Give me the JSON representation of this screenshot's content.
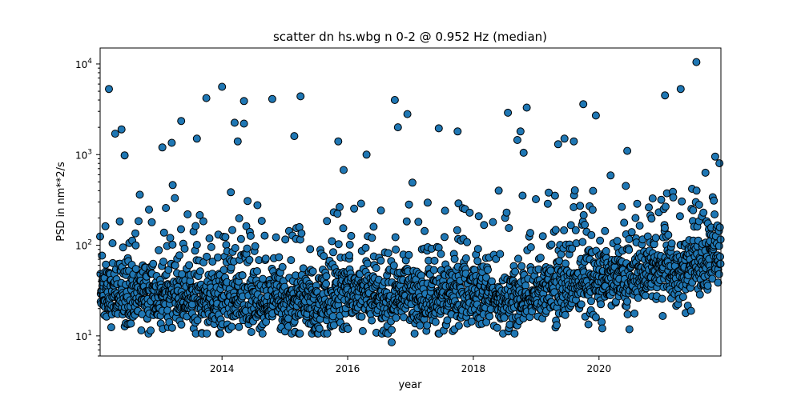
{
  "chart_data": {
    "type": "scatter",
    "title": "scatter dn hs.wbg n 0-2 @ 0.952 Hz (median)",
    "xlabel": "year",
    "ylabel": "PSD in nm**2/s",
    "xlim": [
      2012.06,
      2021.94
    ],
    "ylim": [
      6,
      15000
    ],
    "yscale": "log",
    "grid": false,
    "x_ticks": [
      2014,
      2016,
      2018,
      2020
    ],
    "y_ticks": [
      {
        "value": 10,
        "base": "10",
        "exp": "1"
      },
      {
        "value": 100,
        "base": "10",
        "exp": "2"
      },
      {
        "value": 1000,
        "base": "10",
        "exp": "3"
      },
      {
        "value": 10000,
        "base": "10",
        "exp": "4"
      }
    ],
    "marker_color": "#1f77b4",
    "marker_edge": "#000000",
    "outliers": [
      {
        "x": 2012.2,
        "y": 5300
      },
      {
        "x": 2012.3,
        "y": 1700
      },
      {
        "x": 2012.4,
        "y": 1900
      },
      {
        "x": 2012.45,
        "y": 980
      },
      {
        "x": 2013.05,
        "y": 1200
      },
      {
        "x": 2013.2,
        "y": 1350
      },
      {
        "x": 2013.35,
        "y": 2350
      },
      {
        "x": 2013.75,
        "y": 4200
      },
      {
        "x": 2013.6,
        "y": 1500
      },
      {
        "x": 2014.0,
        "y": 5600
      },
      {
        "x": 2014.2,
        "y": 2250
      },
      {
        "x": 2014.25,
        "y": 1400
      },
      {
        "x": 2014.35,
        "y": 3900
      },
      {
        "x": 2014.35,
        "y": 2200
      },
      {
        "x": 2014.8,
        "y": 4100
      },
      {
        "x": 2015.25,
        "y": 4400
      },
      {
        "x": 2015.15,
        "y": 1600
      },
      {
        "x": 2015.85,
        "y": 1400
      },
      {
        "x": 2016.3,
        "y": 1000
      },
      {
        "x": 2016.75,
        "y": 4000
      },
      {
        "x": 2016.8,
        "y": 2000
      },
      {
        "x": 2016.95,
        "y": 2800
      },
      {
        "x": 2017.45,
        "y": 1950
      },
      {
        "x": 2017.75,
        "y": 1800
      },
      {
        "x": 2018.55,
        "y": 2900
      },
      {
        "x": 2018.7,
        "y": 1450
      },
      {
        "x": 2018.75,
        "y": 1800
      },
      {
        "x": 2018.85,
        "y": 3300
      },
      {
        "x": 2018.8,
        "y": 1050
      },
      {
        "x": 2019.35,
        "y": 1300
      },
      {
        "x": 2019.45,
        "y": 1500
      },
      {
        "x": 2019.6,
        "y": 1400
      },
      {
        "x": 2019.75,
        "y": 3600
      },
      {
        "x": 2019.95,
        "y": 2700
      },
      {
        "x": 2020.45,
        "y": 1100
      },
      {
        "x": 2021.05,
        "y": 4500
      },
      {
        "x": 2021.3,
        "y": 5300
      },
      {
        "x": 2021.55,
        "y": 10500
      },
      {
        "x": 2021.85,
        "y": 950
      },
      {
        "x": 2016.7,
        "y": 8.5
      }
    ],
    "baseline": [
      {
        "x": 2012.06,
        "median": 28,
        "spread": 12
      },
      {
        "x": 2013.0,
        "median": 25,
        "spread": 10
      },
      {
        "x": 2014.0,
        "median": 26,
        "spread": 10
      },
      {
        "x": 2015.0,
        "median": 24,
        "spread": 10
      },
      {
        "x": 2015.5,
        "median": 22,
        "spread": 9
      },
      {
        "x": 2016.0,
        "median": 28,
        "spread": 11
      },
      {
        "x": 2016.6,
        "median": 24,
        "spread": 11
      },
      {
        "x": 2017.0,
        "median": 25,
        "spread": 10
      },
      {
        "x": 2017.5,
        "median": 22,
        "spread": 10
      },
      {
        "x": 2018.0,
        "median": 30,
        "spread": 12
      },
      {
        "x": 2018.5,
        "median": 25,
        "spread": 11
      },
      {
        "x": 2019.0,
        "median": 30,
        "spread": 12
      },
      {
        "x": 2019.5,
        "median": 32,
        "spread": 13
      },
      {
        "x": 2020.0,
        "median": 38,
        "spread": 15
      },
      {
        "x": 2020.5,
        "median": 45,
        "spread": 18
      },
      {
        "x": 2021.0,
        "median": 55,
        "spread": 20
      },
      {
        "x": 2021.5,
        "median": 60,
        "spread": 22
      },
      {
        "x": 2021.94,
        "median": 75,
        "spread": 25
      }
    ]
  }
}
